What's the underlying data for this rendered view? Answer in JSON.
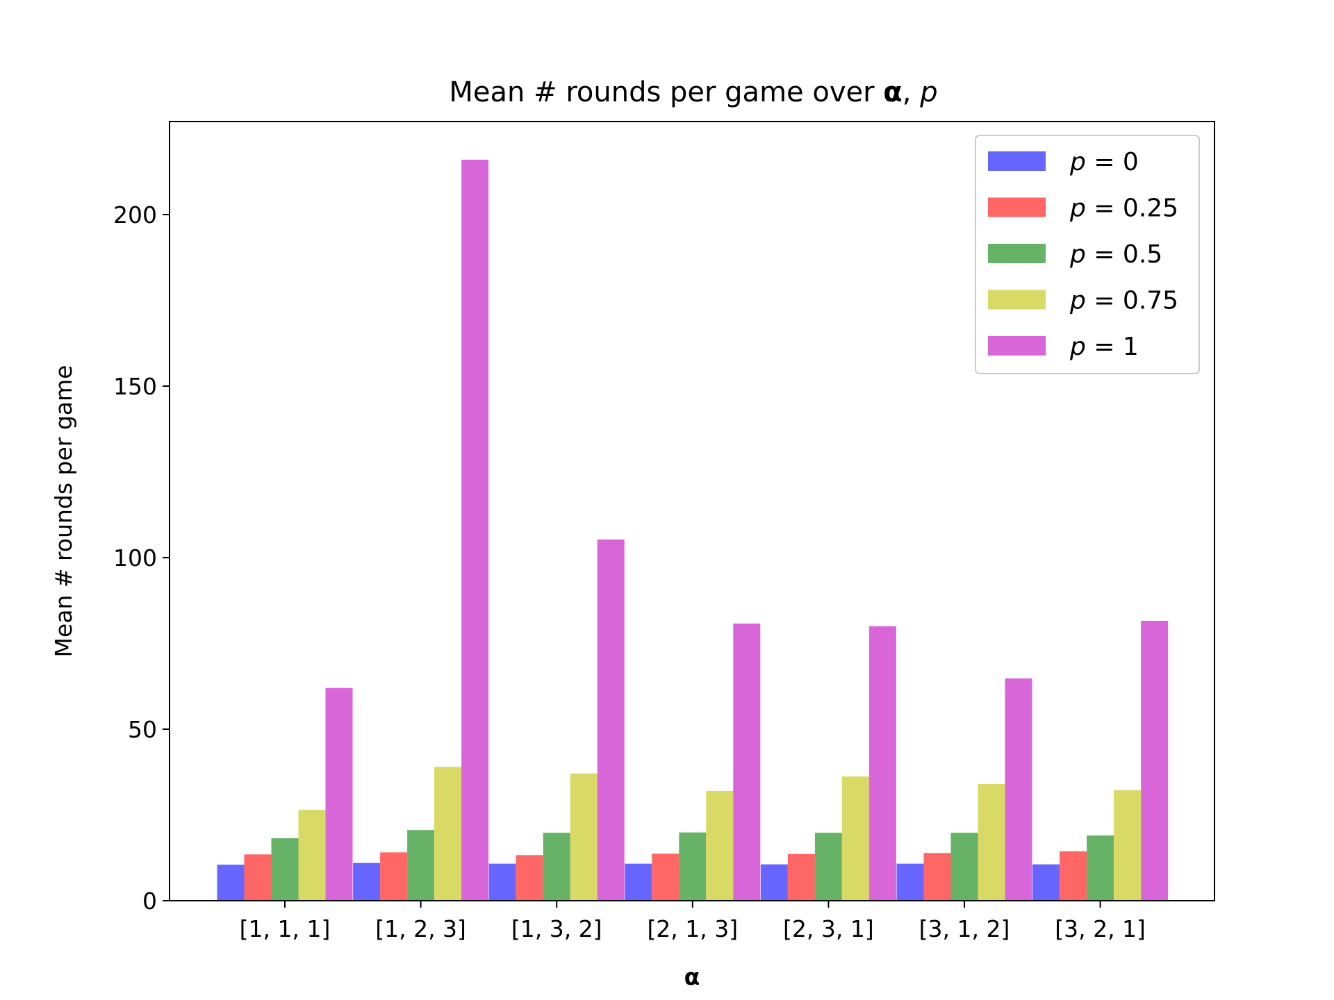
{
  "chart_data": {
    "type": "bar",
    "title": {
      "main": "Mean # rounds per game over ",
      "bold": "α",
      "sep": ", ",
      "italic": "p"
    },
    "xlabel": "α",
    "ylabel": "Mean # rounds per game",
    "categories": [
      "[1, 1, 1]",
      "[1, 2, 3]",
      "[1, 3, 2]",
      "[2, 1, 3]",
      "[2, 3, 1]",
      "[3, 1, 2]",
      "[3, 2, 1]"
    ],
    "ylim": [
      0,
      226
    ],
    "yticks": [
      0,
      50,
      100,
      150,
      200
    ],
    "grid": false,
    "legend_position": "top-right",
    "series": [
      {
        "name": "p = 0",
        "var": "p",
        "eq": "= 0",
        "color": "#6666ff",
        "values": [
          10.5,
          11,
          10.8,
          10.8,
          10.6,
          10.8,
          10.6
        ]
      },
      {
        "name": "p = 0.25",
        "var": "p",
        "eq": "= 0.25",
        "color": "#ff6666",
        "values": [
          13.5,
          14.1,
          13.3,
          13.7,
          13.6,
          13.9,
          14.4
        ]
      },
      {
        "name": "p = 0.5",
        "var": "p",
        "eq": "= 0.5",
        "color": "#66b266",
        "values": [
          18.2,
          20.6,
          19.8,
          19.9,
          19.8,
          19.8,
          19
        ]
      },
      {
        "name": "p = 0.75",
        "var": "p",
        "eq": "= 0.75",
        "color": "#d9d966",
        "values": [
          26.5,
          39,
          37.1,
          32,
          36.2,
          34,
          32.2
        ]
      },
      {
        "name": "p = 1",
        "var": "p",
        "eq": "= 1",
        "color": "#d966d9",
        "values": [
          62,
          216,
          105.3,
          80.8,
          80,
          64.8,
          81.6
        ]
      }
    ]
  }
}
